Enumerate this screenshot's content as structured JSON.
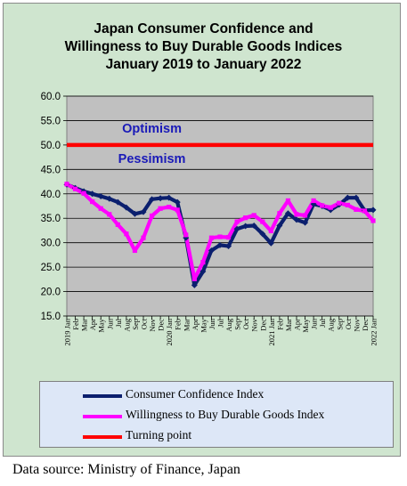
{
  "chart_data": {
    "type": "line",
    "title": [
      "Japan Consumer Confidence and",
      "Willingness to Buy Durable Goods Indices",
      "January 2019 to January 2022"
    ],
    "ylim": [
      15.0,
      60.0
    ],
    "yticks": [
      "15.0",
      "20.0",
      "25.0",
      "30.0",
      "35.0",
      "40.0",
      "45.0",
      "50.0",
      "55.0",
      "60.0"
    ],
    "x": [
      "2019 Jan",
      "Feb",
      "Mar",
      "Apr",
      "May",
      "Jun",
      "Jul",
      "Aug",
      "Sep",
      "Oct",
      "Nov",
      "Dec",
      "2020 Jan",
      "Feb",
      "Mar",
      "Apr",
      "May",
      "Jun",
      "Jul",
      "Aug",
      "Sep",
      "Oct",
      "Nov",
      "Dec",
      "2021 Jan",
      "Feb",
      "Mar",
      "Apr",
      "May",
      "Jun",
      "Jul",
      "Aug",
      "Sep",
      "Oct",
      "Nov",
      "Dec",
      "2022 Jan"
    ],
    "series": [
      {
        "name": "Consumer Confidence Index",
        "color": "#0b1f6e",
        "values": [
          41.9,
          41.2,
          40.5,
          40.0,
          39.5,
          39.0,
          38.3,
          37.2,
          35.9,
          36.3,
          38.9,
          39.1,
          39.2,
          38.3,
          31.0,
          21.3,
          24.1,
          28.4,
          29.5,
          29.3,
          32.8,
          33.4,
          33.5,
          31.8,
          29.9,
          33.5,
          36.0,
          34.7,
          34.1,
          37.9,
          37.5,
          36.7,
          37.8,
          39.2,
          39.2,
          36.6,
          36.7
        ]
      },
      {
        "name": "Willingness to Buy Durable Goods Index",
        "color": "#ff00ff",
        "values": [
          42.0,
          41.0,
          40.1,
          38.4,
          37.0,
          35.8,
          33.7,
          31.8,
          28.4,
          31.0,
          35.5,
          37.0,
          37.3,
          36.7,
          31.6,
          22.6,
          26.0,
          31.0,
          31.2,
          31.1,
          34.3,
          35.1,
          35.6,
          34.3,
          32.4,
          36.0,
          38.6,
          35.8,
          35.6,
          38.6,
          37.6,
          37.2,
          38.1,
          37.7,
          36.8,
          36.5,
          34.5
        ]
      },
      {
        "name": "Turning point",
        "color": "#ff0000",
        "values": [
          50.0,
          50.0,
          50.0,
          50.0,
          50.0,
          50.0,
          50.0,
          50.0,
          50.0,
          50.0,
          50.0,
          50.0,
          50.0,
          50.0,
          50.0,
          50.0,
          50.0,
          50.0,
          50.0,
          50.0,
          50.0,
          50.0,
          50.0,
          50.0,
          50.0,
          50.0,
          50.0,
          50.0,
          50.0,
          50.0,
          50.0,
          50.0,
          50.0,
          50.0,
          50.0,
          50.0,
          50.0
        ]
      }
    ],
    "annotations": [
      {
        "text": "Optimism",
        "x": "Nov",
        "y": 52.5
      },
      {
        "text": "Pessimism",
        "x": "Nov",
        "y": 46.3
      }
    ],
    "grid": "horizontal",
    "legend_position": "bottom"
  },
  "source": "Data source: Ministry of Finance, Japan",
  "colors": {
    "plot_background": "#c0c0c0",
    "frame_background": "#cfe5cf",
    "legend_background": "#dde7f7",
    "annotation_text": "#1a1ab8"
  }
}
